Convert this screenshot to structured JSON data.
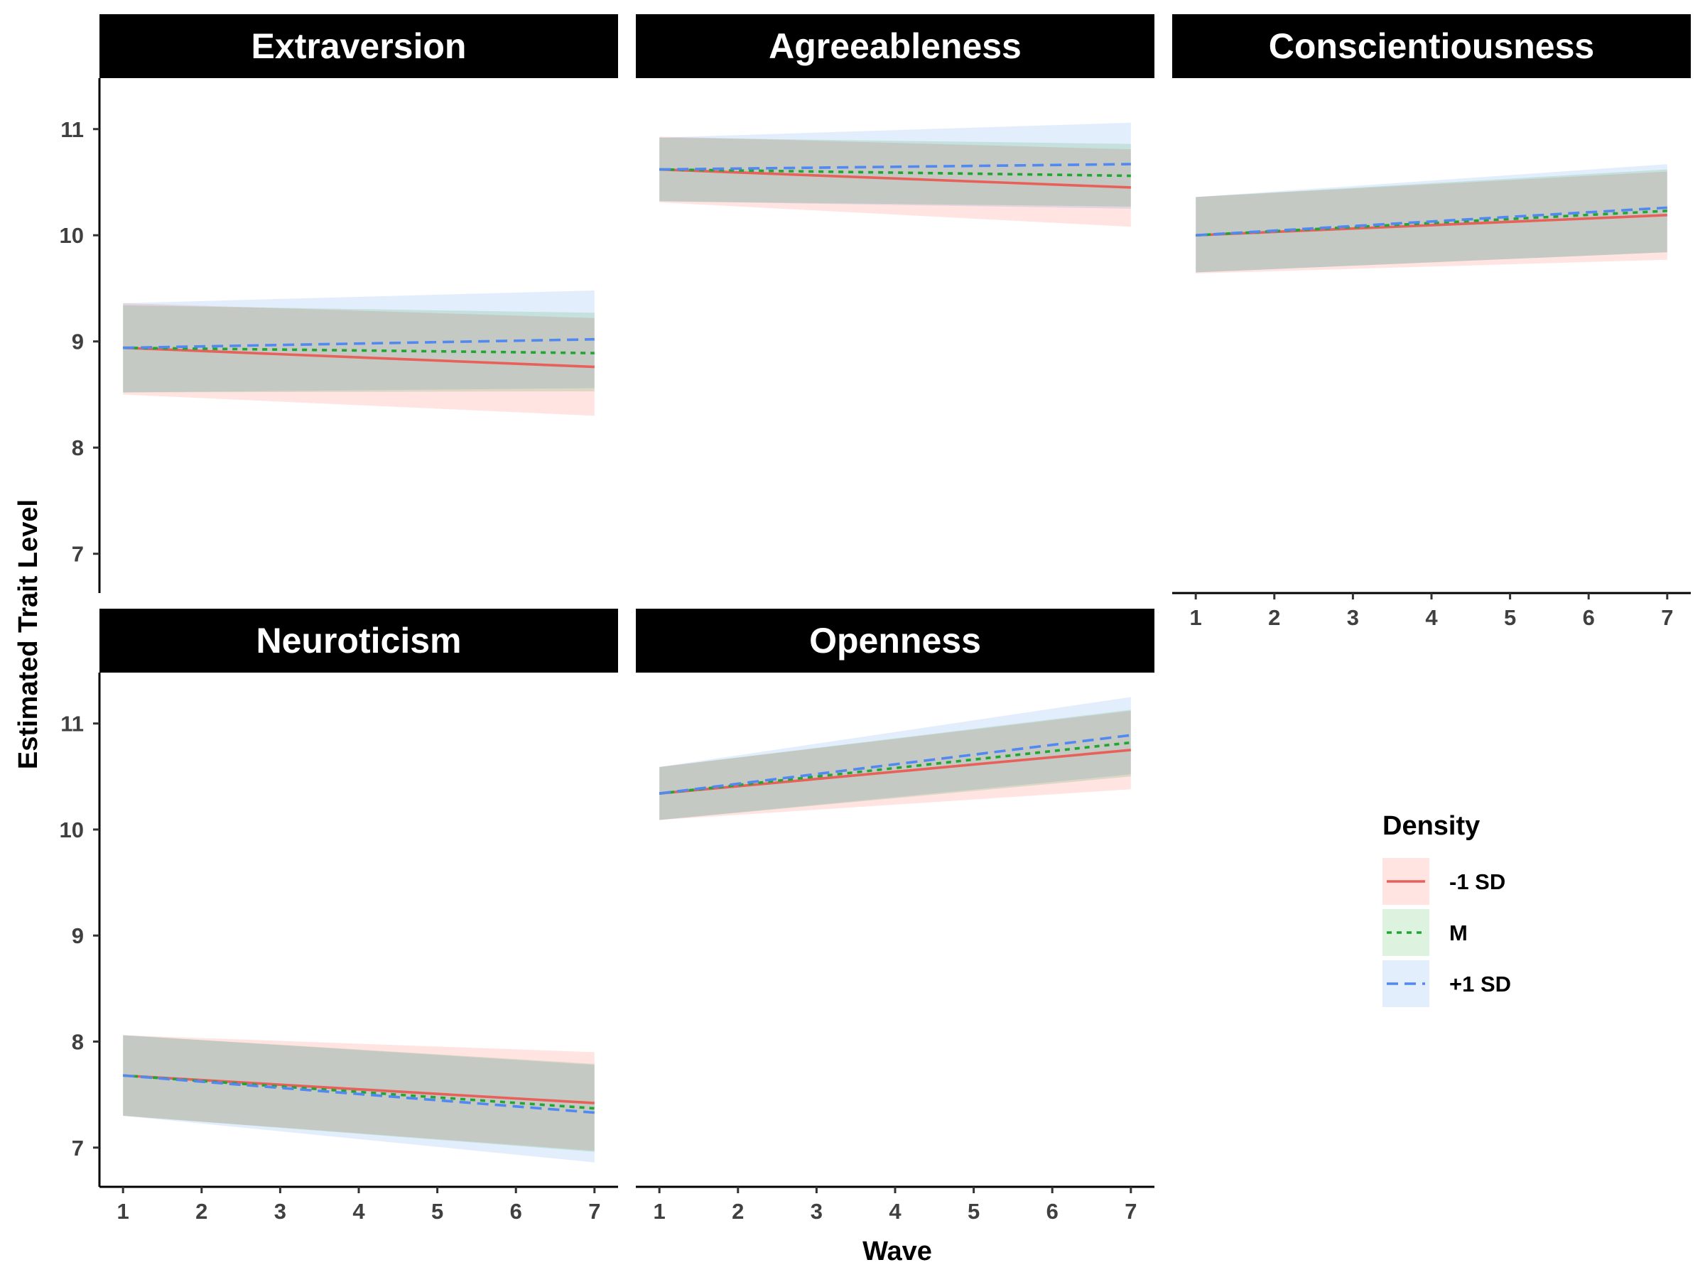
{
  "chart_data": {
    "type": "line",
    "layout": "faceted 2x3",
    "xlabel": "Wave",
    "ylabel": "Estimated Trait Level",
    "x": [
      1,
      2,
      3,
      4,
      5,
      6,
      7
    ],
    "xlim": [
      0.7,
      7.3
    ],
    "ylim": [
      6.63,
      11.48
    ],
    "y_ticks": [
      7,
      8,
      9,
      10,
      11
    ],
    "grid": false,
    "legend": {
      "title": "Density",
      "position": "right",
      "entries": [
        {
          "label": "-1 SD",
          "color": "#E8605A",
          "linestyle": "solid"
        },
        {
          "label": "M",
          "color": "#21A632",
          "linestyle": "dotted"
        },
        {
          "label": "+1 SD",
          "color": "#5188F2",
          "linestyle": "dashed"
        }
      ]
    },
    "colors": {
      "low_line": "#E8605A",
      "mean_line": "#21A632",
      "high_line": "#5188F2",
      "low_band": "#FFE4E2",
      "mean_band": "#DDF2DF",
      "high_band": "#E3EEFD",
      "overlap_band": "#D4DDD8",
      "strip": "#000000"
    },
    "panels": [
      {
        "name": "Extraversion",
        "series": [
          {
            "name": "-1 SD",
            "start": 8.94,
            "end": 8.76,
            "ci_start": [
              8.5,
              9.36
            ],
            "ci_end": [
              8.3,
              9.22
            ]
          },
          {
            "name": "M",
            "start": 8.94,
            "end": 8.89,
            "ci_start": [
              8.52,
              9.34
            ],
            "ci_end": [
              8.53,
              9.27
            ]
          },
          {
            "name": "+1 SD",
            "start": 8.94,
            "end": 9.02,
            "ci_start": [
              8.52,
              9.36
            ],
            "ci_end": [
              8.56,
              9.48
            ]
          }
        ]
      },
      {
        "name": "Agreeableness",
        "series": [
          {
            "name": "-1 SD",
            "start": 10.62,
            "end": 10.45,
            "ci_start": [
              10.31,
              10.93
            ],
            "ci_end": [
              10.08,
              10.81
            ]
          },
          {
            "name": "M",
            "start": 10.62,
            "end": 10.56,
            "ci_start": [
              10.32,
              10.92
            ],
            "ci_end": [
              10.27,
              10.86
            ]
          },
          {
            "name": "+1 SD",
            "start": 10.62,
            "end": 10.67,
            "ci_start": [
              10.32,
              10.92
            ],
            "ci_end": [
              10.25,
              11.06
            ]
          }
        ]
      },
      {
        "name": "Conscientiousness",
        "series": [
          {
            "name": "-1 SD",
            "start": 10.0,
            "end": 10.19,
            "ci_start": [
              9.64,
              10.36
            ],
            "ci_end": [
              9.77,
              10.6
            ]
          },
          {
            "name": "M",
            "start": 10.0,
            "end": 10.23,
            "ci_start": [
              9.65,
              10.36
            ],
            "ci_end": [
              9.84,
              10.62
            ]
          },
          {
            "name": "+1 SD",
            "start": 10.0,
            "end": 10.26,
            "ci_start": [
              9.65,
              10.36
            ],
            "ci_end": [
              9.84,
              10.67
            ]
          }
        ]
      },
      {
        "name": "Neuroticism",
        "series": [
          {
            "name": "-1 SD",
            "start": 7.68,
            "end": 7.42,
            "ci_start": [
              7.3,
              8.06
            ],
            "ci_end": [
              6.97,
              7.9
            ]
          },
          {
            "name": "M",
            "start": 7.68,
            "end": 7.37,
            "ci_start": [
              7.3,
              8.06
            ],
            "ci_end": [
              6.96,
              7.79
            ]
          },
          {
            "name": "+1 SD",
            "start": 7.68,
            "end": 7.33,
            "ci_start": [
              7.3,
              8.06
            ],
            "ci_end": [
              6.86,
              7.78
            ]
          }
        ]
      },
      {
        "name": "Openness",
        "series": [
          {
            "name": "-1 SD",
            "start": 10.34,
            "end": 10.75,
            "ci_start": [
              10.09,
              10.59
            ],
            "ci_end": [
              10.38,
              11.12
            ]
          },
          {
            "name": "M",
            "start": 10.34,
            "end": 10.82,
            "ci_start": [
              10.09,
              10.59
            ],
            "ci_end": [
              10.5,
              11.13
            ]
          },
          {
            "name": "+1 SD",
            "start": 10.34,
            "end": 10.89,
            "ci_start": [
              10.09,
              10.59
            ],
            "ci_end": [
              10.52,
              11.25
            ]
          }
        ]
      }
    ]
  }
}
